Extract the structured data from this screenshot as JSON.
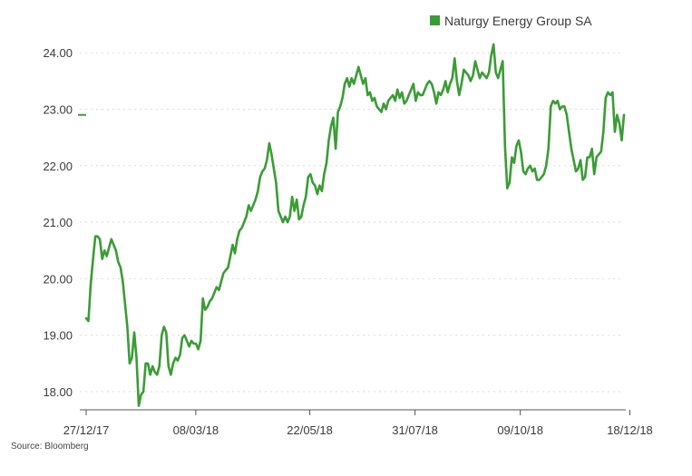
{
  "chart_data": {
    "type": "line",
    "title": "",
    "xlabel": "",
    "ylabel": "",
    "ylim": [
      17.7,
      24.3
    ],
    "yticks": [
      18.0,
      19.0,
      20.0,
      21.0,
      22.0,
      23.0,
      24.0
    ],
    "ytick_labels": [
      "18.00",
      "19.00",
      "20.00",
      "21.00",
      "22.00",
      "23.00",
      "24.00"
    ],
    "x_range": [
      0,
      242
    ],
    "xticks": [
      {
        "label": "27/12/17",
        "pos": 0
      },
      {
        "label": "08/03/18",
        "pos": 50
      },
      {
        "label": "22/05/18",
        "pos": 102
      },
      {
        "label": "31/07/18",
        "pos": 150
      },
      {
        "label": "09/10/18",
        "pos": 198
      },
      {
        "label": "18/12/18",
        "pos": 248
      }
    ],
    "marker_value": 22.9,
    "grid": true,
    "legend_position": "top-right",
    "series": [
      {
        "name": "Naturgy Energy Group SA",
        "color": "#3a9c35",
        "values": [
          19.3,
          19.25,
          19.9,
          20.35,
          20.75,
          20.75,
          20.7,
          20.35,
          20.5,
          20.4,
          20.55,
          20.7,
          20.6,
          20.5,
          20.3,
          20.2,
          19.95,
          19.55,
          19.15,
          18.5,
          18.6,
          19.05,
          18.6,
          17.75,
          17.95,
          18.0,
          18.5,
          18.5,
          18.3,
          18.45,
          18.35,
          18.3,
          18.45,
          19.0,
          19.15,
          19.05,
          18.45,
          18.3,
          18.5,
          18.6,
          18.55,
          18.65,
          18.95,
          19.0,
          18.9,
          18.8,
          18.9,
          18.85,
          18.85,
          18.75,
          18.9,
          19.65,
          19.45,
          19.5,
          19.6,
          19.65,
          19.75,
          19.85,
          19.8,
          19.95,
          20.1,
          20.15,
          20.2,
          20.4,
          20.6,
          20.45,
          20.7,
          20.85,
          20.9,
          21.0,
          21.1,
          21.3,
          21.2,
          21.3,
          21.4,
          21.55,
          21.8,
          21.9,
          21.95,
          22.1,
          22.4,
          22.2,
          21.95,
          21.7,
          21.2,
          21.1,
          21.0,
          21.1,
          21.0,
          21.1,
          21.45,
          21.2,
          21.4,
          21.05,
          21.1,
          21.3,
          21.45,
          21.8,
          21.85,
          21.7,
          21.65,
          21.5,
          21.65,
          21.55,
          21.85,
          22.05,
          22.45,
          22.7,
          22.85,
          22.3,
          22.95,
          23.05,
          23.2,
          23.45,
          23.55,
          23.4,
          23.55,
          23.45,
          23.6,
          23.75,
          23.6,
          23.45,
          23.55,
          23.25,
          23.3,
          23.15,
          23.2,
          23.05,
          23.0,
          22.95,
          23.1,
          23.0,
          23.15,
          23.2,
          23.25,
          23.15,
          23.35,
          23.2,
          23.3,
          23.1,
          23.15,
          23.25,
          23.35,
          23.45,
          23.15,
          23.3,
          23.25,
          23.25,
          23.35,
          23.45,
          23.5,
          23.45,
          23.3,
          23.1,
          23.3,
          23.25,
          23.35,
          23.5,
          23.3,
          23.45,
          23.55,
          23.9,
          23.5,
          23.25,
          23.45,
          23.7,
          23.65,
          23.6,
          23.5,
          23.6,
          23.85,
          23.7,
          23.55,
          23.65,
          23.6,
          23.55,
          23.65,
          23.95,
          24.15,
          23.65,
          23.55,
          23.7,
          23.85,
          22.35,
          21.6,
          21.7,
          22.15,
          22.05,
          22.35,
          22.45,
          22.25,
          21.9,
          21.85,
          21.95,
          22.0,
          21.9,
          21.95,
          21.75,
          21.75,
          21.8,
          21.85,
          22.0,
          22.3,
          23.05,
          23.15,
          23.1,
          23.15,
          23.0,
          23.05,
          23.05,
          22.9,
          22.6,
          22.3,
          22.1,
          21.9,
          21.95,
          22.1,
          21.75,
          21.8,
          22.15,
          22.15,
          22.3,
          21.85,
          22.15,
          22.2,
          22.25,
          22.6,
          23.2,
          23.3,
          23.25,
          23.3,
          22.6,
          22.9,
          22.75,
          22.45,
          22.9
        ]
      }
    ]
  },
  "source": "Source: Bloomberg"
}
